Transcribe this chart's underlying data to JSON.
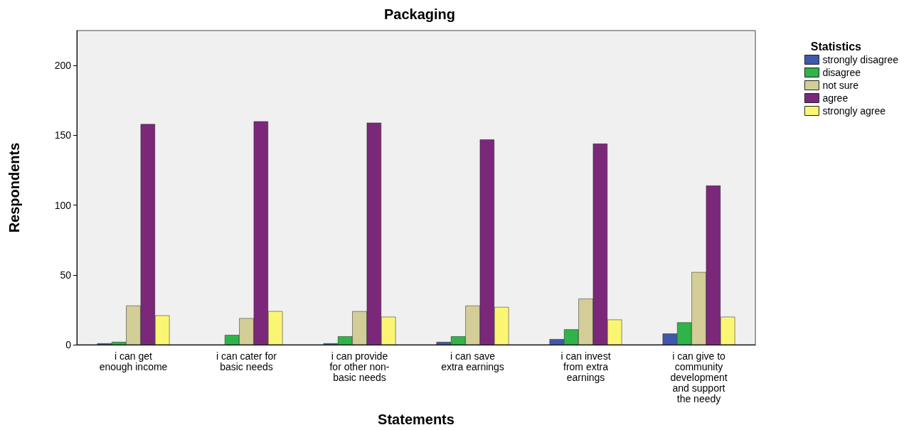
{
  "chart_data": {
    "type": "bar",
    "title": "Packaging",
    "xlabel": "Statements",
    "ylabel": "Respondents",
    "legend_title": "Statistics",
    "legend": "right",
    "categories": [
      "i can get\nenough income",
      "i can cater for\nbasic needs",
      "i can provide\nfor other non-\nbasic needs",
      "i can save\nextra earnings",
      "i can invest\nfrom extra\nearnings",
      "i can give to\ncommunity\ndevelopment\nand support\nthe needy"
    ],
    "series": [
      {
        "name": "strongly disagree",
        "color": "#3e58ac",
        "values": [
          1,
          0,
          1,
          2,
          4,
          8
        ]
      },
      {
        "name": "disagree",
        "color": "#2eb448",
        "values": [
          2,
          7,
          6,
          6,
          11,
          16
        ]
      },
      {
        "name": "not sure",
        "color": "#d3ce97",
        "values": [
          28,
          19,
          24,
          28,
          33,
          52
        ]
      },
      {
        "name": "agree",
        "color": "#7b287a",
        "values": [
          158,
          160,
          159,
          147,
          144,
          114
        ]
      },
      {
        "name": "strongly agree",
        "color": "#fbf574",
        "values": [
          21,
          24,
          20,
          27,
          18,
          20
        ]
      }
    ],
    "ylim": [
      0,
      225
    ],
    "yticks": [
      0,
      50,
      100,
      150,
      200
    ],
    "grid": false
  }
}
